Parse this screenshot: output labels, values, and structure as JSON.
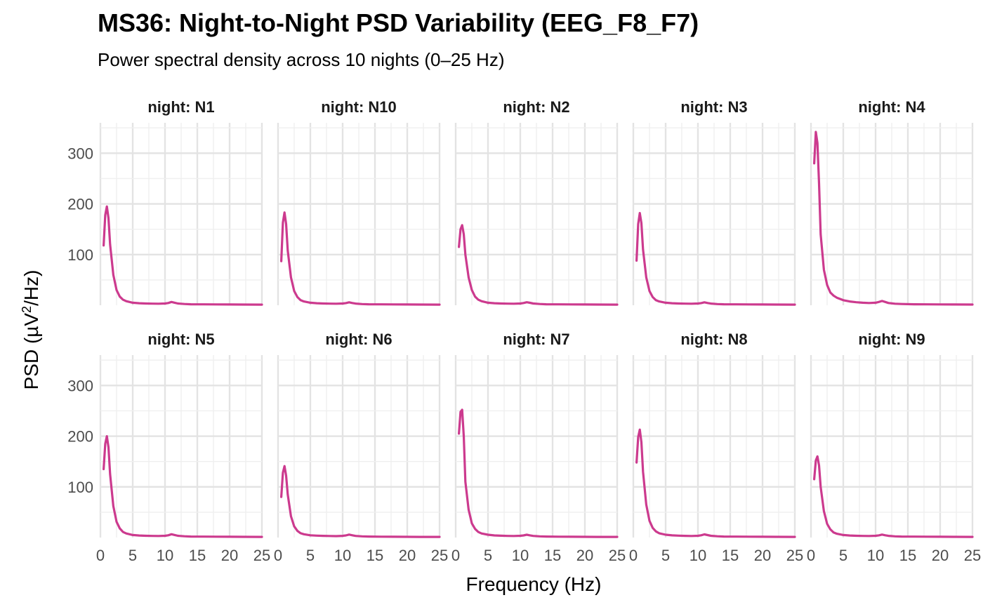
{
  "title": "MS36: Night-to-Night PSD Variability (EEG_F8_F7)",
  "subtitle": "Power spectral density across 10 nights (0–25 Hz)",
  "chart_data": {
    "type": "line",
    "title": "MS36: Night-to-Night PSD Variability (EEG_F8_F7)",
    "subtitle": "Power spectral density across 10 nights (0–25 Hz)",
    "xlabel": "Frequency (Hz)",
    "ylabel": "PSD (µV²/Hz)",
    "ylabel_prefix": "PSD",
    "ylabel_unit": "µV",
    "ylabel_sup": "2",
    "ylabel_suffix": "/Hz",
    "xlim": [
      0,
      25
    ],
    "ylim": [
      0,
      360
    ],
    "xticks": [
      0,
      5,
      10,
      15,
      20,
      25
    ],
    "yticks": [
      100,
      200,
      300
    ],
    "grid": true,
    "line_color": "#CC3A8E",
    "facet_prefix": "night: ",
    "layout": {
      "rows": 2,
      "cols": 5
    },
    "x": [
      0.5,
      0.75,
      1.0,
      1.25,
      1.5,
      2.0,
      2.5,
      3.0,
      3.5,
      4.0,
      5.0,
      6.0,
      7.0,
      8.0,
      9.0,
      10.0,
      10.5,
      11.0,
      11.5,
      12.0,
      13.0,
      14.0,
      16.0,
      18.0,
      20.0,
      22.0,
      25.0
    ],
    "series": [
      {
        "name": "N1",
        "values": [
          118,
          178,
          195,
          172,
          120,
          60,
          30,
          17,
          11,
          8,
          5,
          4,
          3.5,
          3.2,
          3,
          3.5,
          4.5,
          6.5,
          5,
          3.5,
          2.5,
          2,
          1.8,
          1.6,
          1.5,
          1.4,
          1.3
        ]
      },
      {
        "name": "N10",
        "values": [
          87,
          163,
          183,
          160,
          108,
          55,
          28,
          16,
          10,
          7.5,
          5,
          4,
          3.5,
          3.2,
          3,
          3.5,
          4.3,
          5.8,
          4.5,
          3.3,
          2.4,
          2,
          1.8,
          1.6,
          1.5,
          1.4,
          1.3
        ]
      },
      {
        "name": "N2",
        "values": [
          115,
          150,
          158,
          140,
          100,
          55,
          30,
          17,
          11,
          8,
          5,
          4,
          3.5,
          3.2,
          3,
          3.5,
          4.5,
          6,
          4.8,
          3.4,
          2.5,
          2,
          1.8,
          1.6,
          1.5,
          1.4,
          1.3
        ]
      },
      {
        "name": "N3",
        "values": [
          88,
          160,
          182,
          162,
          110,
          55,
          28,
          16,
          10,
          7.5,
          5,
          4,
          3.5,
          3.2,
          3,
          3.5,
          4.3,
          5.8,
          4.5,
          3.3,
          2.4,
          2,
          1.8,
          1.6,
          1.5,
          1.4,
          1.3
        ]
      },
      {
        "name": "N4",
        "values": [
          280,
          342,
          320,
          240,
          140,
          70,
          40,
          25,
          19,
          15,
          10,
          7.5,
          6,
          5,
          4.5,
          5,
          6.5,
          8.5,
          6.5,
          4.5,
          3,
          2.5,
          2,
          1.8,
          1.6,
          1.5,
          1.4
        ]
      },
      {
        "name": "N5",
        "values": [
          135,
          185,
          200,
          178,
          125,
          62,
          31,
          18,
          11,
          8,
          5,
          4,
          3.5,
          3.2,
          3,
          3.5,
          4.5,
          6.5,
          5,
          3.5,
          2.5,
          2,
          1.8,
          1.6,
          1.5,
          1.4,
          1.3
        ]
      },
      {
        "name": "N6",
        "values": [
          80,
          128,
          141,
          122,
          85,
          42,
          22,
          13,
          8.5,
          6.5,
          4.5,
          3.8,
          3.3,
          3,
          2.8,
          3.3,
          4.2,
          5.8,
          4.5,
          3.2,
          2.3,
          1.9,
          1.7,
          1.5,
          1.4,
          1.3,
          1.2
        ]
      },
      {
        "name": "N7",
        "values": [
          205,
          248,
          252,
          200,
          110,
          55,
          28,
          17,
          11,
          8,
          5.5,
          4.2,
          3.6,
          3.2,
          3,
          3.4,
          4.2,
          5.5,
          4.3,
          3.2,
          2.3,
          1.9,
          1.7,
          1.5,
          1.4,
          1.3,
          1.2
        ]
      },
      {
        "name": "N8",
        "values": [
          148,
          198,
          213,
          188,
          130,
          65,
          33,
          19,
          12,
          8.5,
          5.5,
          4.3,
          3.7,
          3.3,
          3.1,
          3.5,
          4.5,
          6.2,
          4.8,
          3.4,
          2.5,
          2,
          1.8,
          1.6,
          1.5,
          1.4,
          1.3
        ]
      },
      {
        "name": "N9",
        "values": [
          115,
          152,
          160,
          142,
          100,
          52,
          27,
          16,
          10,
          7.5,
          5,
          4,
          3.5,
          3.2,
          3,
          3.5,
          4.3,
          5.8,
          4.5,
          3.3,
          2.4,
          2,
          1.8,
          1.6,
          1.5,
          1.4,
          1.3
        ]
      }
    ]
  }
}
